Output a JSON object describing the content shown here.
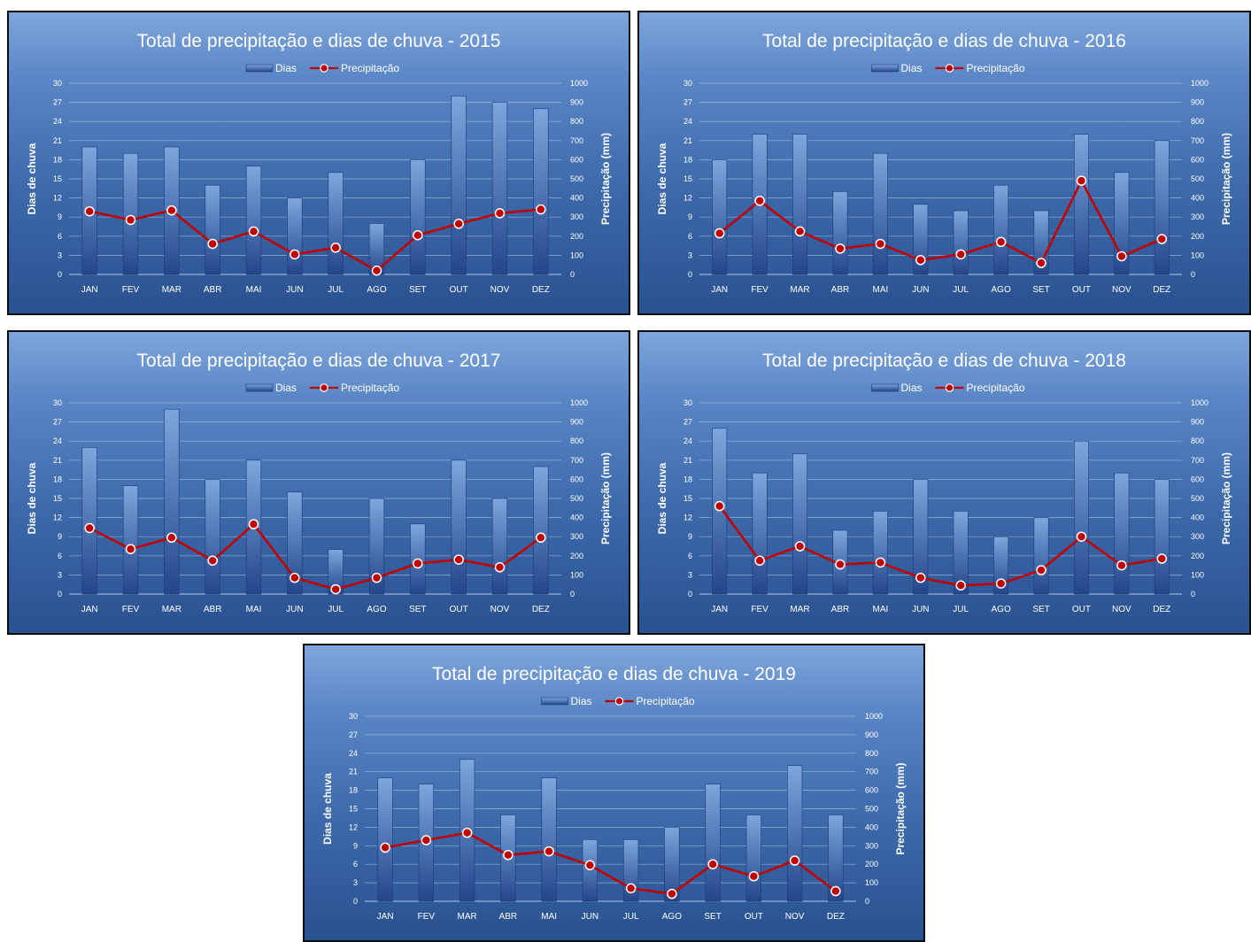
{
  "charts": {
    "title_prefix": "Total de precipitação e dias de chuva - ",
    "legend": {
      "bars": "Dias",
      "line": "Precipitação"
    },
    "left_axis_title": "Dias de chuva",
    "right_axis_title": "Precipitação (mm)",
    "left_ticks": [
      "0",
      "3",
      "6",
      "9",
      "12",
      "15",
      "18",
      "21",
      "24",
      "27",
      "30"
    ],
    "right_ticks": [
      "0",
      "100",
      "200",
      "300",
      "400",
      "500",
      "600",
      "700",
      "800",
      "900",
      "1000"
    ],
    "colors": {
      "bar_light": "#7ea6de",
      "bar_dark": "#23468a",
      "line": "#c00000",
      "marker_fill": "#c00000",
      "marker_stroke": "#ffffff",
      "grid": "#b9cdea"
    }
  },
  "chart_data": [
    {
      "type": "bar",
      "title": "Total de precipitação e dias de chuva - 2015",
      "year": "2015",
      "categories": [
        "JAN",
        "FEV",
        "MAR",
        "ABR",
        "MAI",
        "JUN",
        "JUL",
        "AGO",
        "SET",
        "OUT",
        "NOV",
        "DEZ"
      ],
      "series": [
        {
          "name": "Dias",
          "type": "bar",
          "axis": "left",
          "values": [
            20,
            19,
            20,
            14,
            17,
            12,
            16,
            8,
            18,
            28,
            27,
            26
          ]
        },
        {
          "name": "Precipitação",
          "type": "line",
          "axis": "right",
          "values": [
            330,
            285,
            335,
            160,
            225,
            105,
            140,
            20,
            205,
            265,
            320,
            340
          ]
        }
      ],
      "ylabel": "Dias de chuva",
      "y2label": "Precipitação (mm)",
      "ylim": [
        0,
        30
      ],
      "y2lim": [
        0,
        1000
      ],
      "grid": true,
      "legend": "top"
    },
    {
      "type": "bar",
      "title": "Total de precipitação e dias de chuva - 2016",
      "year": "2016",
      "categories": [
        "JAN",
        "FEV",
        "MAR",
        "ABR",
        "MAI",
        "JUN",
        "JUL",
        "AGO",
        "SET",
        "OUT",
        "NOV",
        "DEZ"
      ],
      "series": [
        {
          "name": "Dias",
          "type": "bar",
          "axis": "left",
          "values": [
            18,
            22,
            22,
            13,
            19,
            11,
            10,
            14,
            10,
            22,
            16,
            21
          ]
        },
        {
          "name": "Precipitação",
          "type": "line",
          "axis": "right",
          "values": [
            215,
            385,
            225,
            135,
            160,
            75,
            105,
            170,
            60,
            490,
            95,
            185
          ]
        }
      ],
      "ylabel": "Dias de chuva",
      "y2label": "Precipitação (mm)",
      "ylim": [
        0,
        30
      ],
      "y2lim": [
        0,
        1000
      ],
      "grid": true,
      "legend": "top"
    },
    {
      "type": "bar",
      "title": "Total de precipitação e dias de chuva - 2017",
      "year": "2017",
      "categories": [
        "JAN",
        "FEV",
        "MAR",
        "ABR",
        "MAI",
        "JUN",
        "JUL",
        "AGO",
        "SET",
        "OUT",
        "NOV",
        "DEZ"
      ],
      "series": [
        {
          "name": "Dias",
          "type": "bar",
          "axis": "left",
          "values": [
            23,
            17,
            29,
            18,
            21,
            16,
            7,
            15,
            11,
            21,
            15,
            20
          ]
        },
        {
          "name": "Precipitação",
          "type": "line",
          "axis": "right",
          "values": [
            345,
            235,
            295,
            175,
            365,
            85,
            25,
            85,
            160,
            180,
            140,
            295
          ]
        }
      ],
      "ylabel": "Dias de chuva",
      "y2label": "Precipitação (mm)",
      "ylim": [
        0,
        30
      ],
      "y2lim": [
        0,
        1000
      ],
      "grid": true,
      "legend": "top"
    },
    {
      "type": "bar",
      "title": "Total de precipitação e dias de chuva - 2018",
      "year": "2018",
      "categories": [
        "JAN",
        "FEV",
        "MAR",
        "ABR",
        "MAI",
        "JUN",
        "JUL",
        "AGO",
        "SET",
        "OUT",
        "NOV",
        "DEZ"
      ],
      "series": [
        {
          "name": "Dias",
          "type": "bar",
          "axis": "left",
          "values": [
            26,
            19,
            22,
            10,
            13,
            18,
            13,
            9,
            12,
            24,
            19,
            18
          ]
        },
        {
          "name": "Precipitação",
          "type": "line",
          "axis": "right",
          "values": [
            460,
            175,
            250,
            155,
            165,
            85,
            45,
            55,
            125,
            300,
            150,
            185
          ]
        }
      ],
      "ylabel": "Dias de chuva",
      "y2label": "Precipitação (mm)",
      "ylim": [
        0,
        30
      ],
      "y2lim": [
        0,
        1000
      ],
      "grid": true,
      "legend": "top"
    },
    {
      "type": "bar",
      "title": "Total de precipitação e dias de chuva - 2019",
      "year": "2019",
      "categories": [
        "JAN",
        "FEV",
        "MAR",
        "ABR",
        "MAI",
        "JUN",
        "JUL",
        "AGO",
        "SET",
        "OUT",
        "NOV",
        "DEZ"
      ],
      "series": [
        {
          "name": "Dias",
          "type": "bar",
          "axis": "left",
          "values": [
            20,
            19,
            23,
            14,
            20,
            10,
            10,
            12,
            19,
            14,
            22,
            14
          ]
        },
        {
          "name": "Precipitação",
          "type": "line",
          "axis": "right",
          "values": [
            290,
            330,
            370,
            250,
            270,
            195,
            70,
            40,
            200,
            135,
            220,
            55
          ]
        }
      ],
      "ylabel": "Dias de chuva",
      "y2label": "Precipitação (mm)",
      "ylim": [
        0,
        30
      ],
      "y2lim": [
        0,
        1000
      ],
      "grid": true,
      "legend": "top"
    }
  ]
}
